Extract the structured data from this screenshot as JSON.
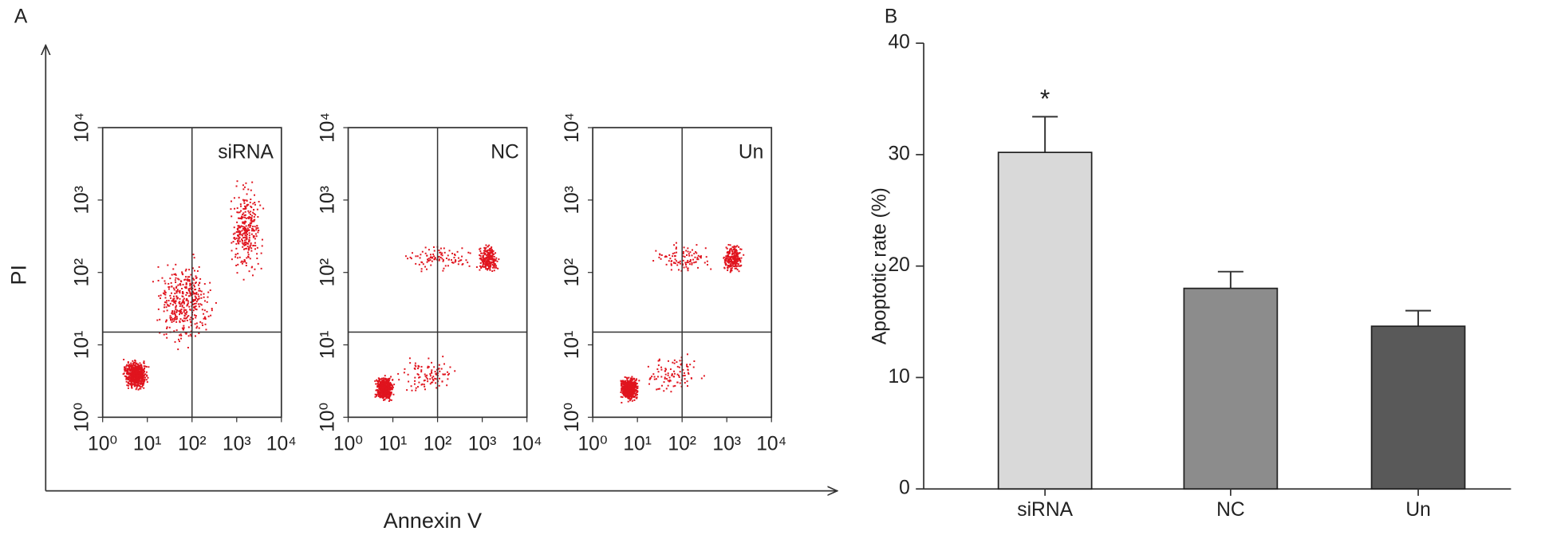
{
  "chart_data": [
    {
      "type": "scatter",
      "panel": "A",
      "ylabel": "PI",
      "xlabel": "Annexin V",
      "log_scale": true,
      "xlim": [
        1,
        10000
      ],
      "ylim": [
        1,
        10000
      ],
      "xticks": [
        {
          "value": 1,
          "label": "10⁰"
        },
        {
          "value": 10,
          "label": "10¹"
        },
        {
          "value": 100,
          "label": "10²"
        },
        {
          "value": 1000,
          "label": "10³"
        },
        {
          "value": 10000,
          "label": "10⁴"
        }
      ],
      "yticks": [
        {
          "value": 1,
          "label": "10⁰"
        },
        {
          "value": 10,
          "label": "10¹"
        },
        {
          "value": 100,
          "label": "10²"
        },
        {
          "value": 1000,
          "label": "10³"
        },
        {
          "value": 10000,
          "label": "10⁴"
        }
      ],
      "quadrant_gate": {
        "x": 100,
        "y": 15
      },
      "color": "#e0141e",
      "plots": [
        {
          "name": "siRNA"
        },
        {
          "name": "NC"
        },
        {
          "name": "Un"
        }
      ]
    },
    {
      "type": "bar",
      "panel": "B",
      "ylabel": "Apoptotic rate (%)",
      "categories": [
        "siRNA",
        "NC",
        "Un"
      ],
      "values": [
        30.2,
        18,
        14.6
      ],
      "errors": [
        3.2,
        1.5,
        1.4
      ],
      "colors": [
        "#d9d9d9",
        "#8c8c8c",
        "#595959"
      ],
      "annotations": [
        "*",
        null,
        null
      ],
      "ylim": [
        0,
        40
      ],
      "yticks": [
        0,
        10,
        20,
        30,
        40
      ]
    }
  ]
}
